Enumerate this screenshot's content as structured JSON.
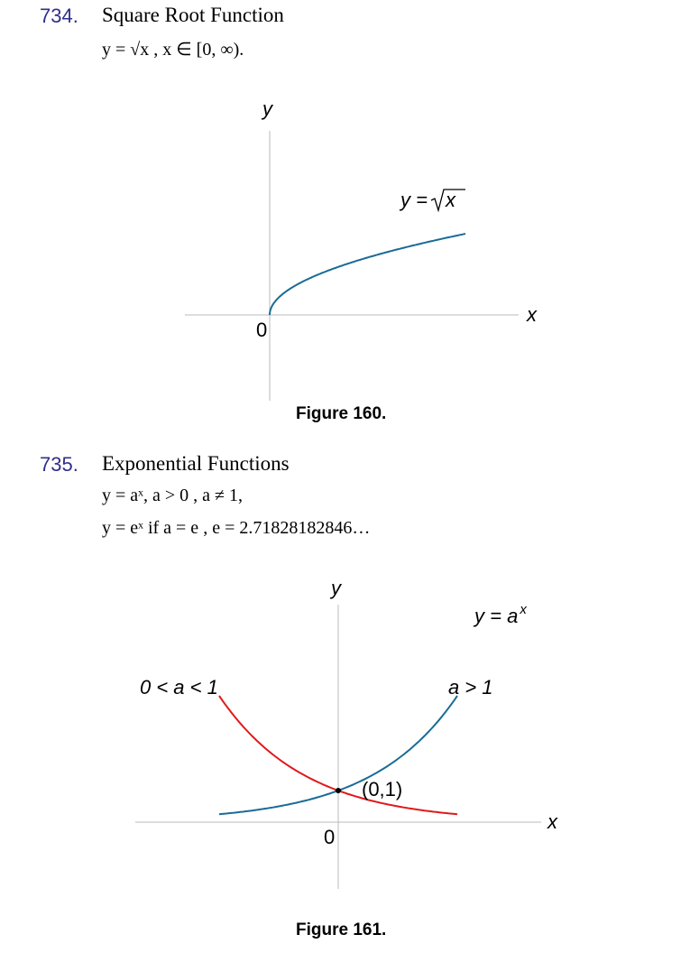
{
  "section734": {
    "number": "734.",
    "title": "Square Root Function",
    "formula": "y = √x , x ∈ [0, ∞)."
  },
  "figure160": {
    "caption": "Figure 160.",
    "y_axis_label": "y",
    "x_axis_label": "x",
    "origin_label": "0",
    "curve_label_lhs": "y =",
    "curve_label_rad": "x"
  },
  "section735": {
    "number": "735.",
    "title": "Exponential Functions",
    "formula1": "y = aˣ,  a > 0 ,  a ≠ 1,",
    "formula2": "y = eˣ  if a = e ,  e = 2.71828182846…"
  },
  "figure161": {
    "caption": "Figure 161.",
    "y_axis_label": "y",
    "x_axis_label": "x",
    "origin_label": "0",
    "curve_label_base": "y = a",
    "curve_label_exp": "x",
    "left_label": "0 < a < 1",
    "right_label": "a > 1",
    "point_label": "(0,1)"
  },
  "colors": {
    "blue_curve": "#1a6b96",
    "red_curve": "#e0191b",
    "axis": "#bbbbbb",
    "section_number": "#2f2f8c"
  },
  "chart_data": [
    {
      "type": "line",
      "title": "Figure 160.",
      "xlabel": "x",
      "ylabel": "y",
      "series": [
        {
          "name": "y = √x",
          "x": [
            0,
            0.25,
            1,
            2,
            3,
            4,
            5,
            6,
            7
          ],
          "y": [
            0,
            0.5,
            1,
            1.414,
            1.732,
            2,
            2.236,
            2.449,
            2.646
          ]
        }
      ]
    },
    {
      "type": "line",
      "title": "Figure 161.",
      "xlabel": "x",
      "ylabel": "y",
      "annotations": [
        "(0,1)",
        "0 < a < 1",
        "a > 1",
        "y = aˣ"
      ],
      "series": [
        {
          "name": "a > 1",
          "x": [
            -2,
            -1,
            0,
            1,
            2
          ],
          "y": [
            0.25,
            0.5,
            1,
            2,
            4
          ]
        },
        {
          "name": "0 < a < 1",
          "x": [
            -2,
            -1,
            0,
            1,
            2
          ],
          "y": [
            4,
            2,
            1,
            0.5,
            0.25
          ]
        }
      ]
    }
  ]
}
